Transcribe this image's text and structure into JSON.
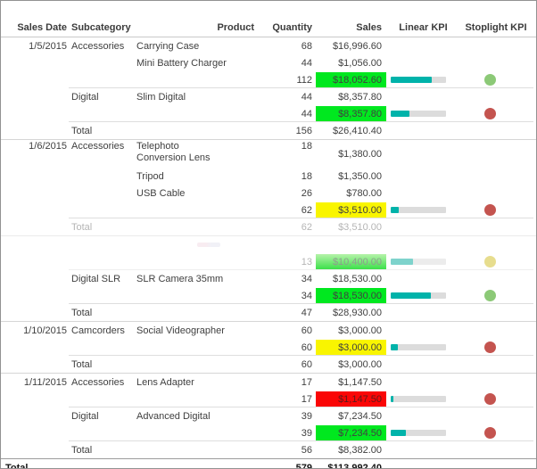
{
  "report": {
    "columns": [
      "Sales Date",
      "Subcategory",
      "Product",
      "Quantity",
      "Sales",
      "Linear KPI",
      "Stoplight KPI"
    ],
    "rows": [
      {
        "type": "detail",
        "date": "1/5/2015",
        "subcategory": "Accessories",
        "product": "Carrying Case",
        "quantity": "68",
        "sales": "$16,996.60"
      },
      {
        "type": "detail",
        "product": "Mini Battery Charger",
        "quantity": "44",
        "sales": "$1,056.00"
      },
      {
        "type": "subtotal",
        "quantity": "112",
        "sales": "$18,052.60",
        "sales_bg": "green",
        "kpi_percent": 74,
        "stoplight": "green"
      },
      {
        "type": "detail",
        "subcategory": "Digital",
        "product": "Slim Digital",
        "quantity": "44",
        "sales": "$8,357.80"
      },
      {
        "type": "subtotal",
        "quantity": "44",
        "sales": "$8,357.80",
        "sales_bg": "green",
        "kpi_percent": 34,
        "stoplight": "red"
      },
      {
        "type": "total",
        "subcategory": "Total",
        "quantity": "156",
        "sales": "$26,410.40"
      },
      {
        "type": "detail",
        "tall": true,
        "date": "1/6/2015",
        "subcategory": "Accessories",
        "product": "Telephoto Conversion Lens",
        "quantity": "18",
        "sales": "$1,380.00"
      },
      {
        "type": "detail",
        "product": "Tripod",
        "quantity": "18",
        "sales": "$1,350.00"
      },
      {
        "type": "detail",
        "product": "USB Cable",
        "quantity": "26",
        "sales": "$780.00"
      },
      {
        "type": "subtotal",
        "quantity": "62",
        "sales": "$3,510.00",
        "sales_bg": "yellow",
        "kpi_percent": 15,
        "stoplight": "red"
      },
      {
        "type": "total",
        "faded": true,
        "subcategory": "Total",
        "quantity": "62",
        "sales": "$3,510.00"
      },
      {
        "type": "faded_blank",
        "smudge": true
      },
      {
        "type": "subtotal",
        "faded": true,
        "quantity": "13",
        "sales": "$10,400.00",
        "sales_bg": "green_faded",
        "kpi_percent": 40,
        "stoplight": "yellow_faded"
      },
      {
        "type": "detail",
        "subcategory": "Digital SLR",
        "product": "SLR Camera 35mm",
        "quantity": "34",
        "sales": "$18,530.00"
      },
      {
        "type": "subtotal",
        "quantity": "34",
        "sales": "$18,530.00",
        "sales_bg": "green",
        "kpi_percent": 72,
        "stoplight": "green"
      },
      {
        "type": "total",
        "subcategory": "Total",
        "quantity": "47",
        "sales": "$28,930.00"
      },
      {
        "type": "detail",
        "date": "1/10/2015",
        "subcategory": "Camcorders",
        "product": "Social Videographer",
        "quantity": "60",
        "sales": "$3,000.00"
      },
      {
        "type": "subtotal",
        "quantity": "60",
        "sales": "$3,000.00",
        "sales_bg": "yellow",
        "kpi_percent": 13,
        "stoplight": "red"
      },
      {
        "type": "total",
        "subcategory": "Total",
        "quantity": "60",
        "sales": "$3,000.00"
      },
      {
        "type": "detail",
        "date": "1/11/2015",
        "subcategory": "Accessories",
        "product": "Lens Adapter",
        "quantity": "17",
        "sales": "$1,147.50"
      },
      {
        "type": "subtotal",
        "quantity": "17",
        "sales": "$1,147.50",
        "sales_bg": "red",
        "kpi_percent": 5,
        "stoplight": "red"
      },
      {
        "type": "detail",
        "subcategory": "Digital",
        "product": "Advanced Digital",
        "quantity": "39",
        "sales": "$7,234.50"
      },
      {
        "type": "subtotal",
        "quantity": "39",
        "sales": "$7,234.50",
        "sales_bg": "green",
        "kpi_percent": 27,
        "stoplight": "red"
      },
      {
        "type": "total",
        "subcategory": "Total",
        "quantity": "56",
        "sales": "$8,382.00"
      },
      {
        "type": "grand_total",
        "date": "Total",
        "quantity": "579",
        "sales": "$113,992.40"
      }
    ],
    "colors": {
      "highlight_green": "#00e81f",
      "highlight_yellow": "#f9f500",
      "highlight_red": "#fa0606",
      "kpi_bar_fill": "#00b3aa",
      "kpi_bar_track": "#dcdcdc",
      "stoplight_green": "#8cc977",
      "stoplight_red": "#c4544f",
      "stoplight_yellow_faded": "#e7dd8e"
    }
  }
}
